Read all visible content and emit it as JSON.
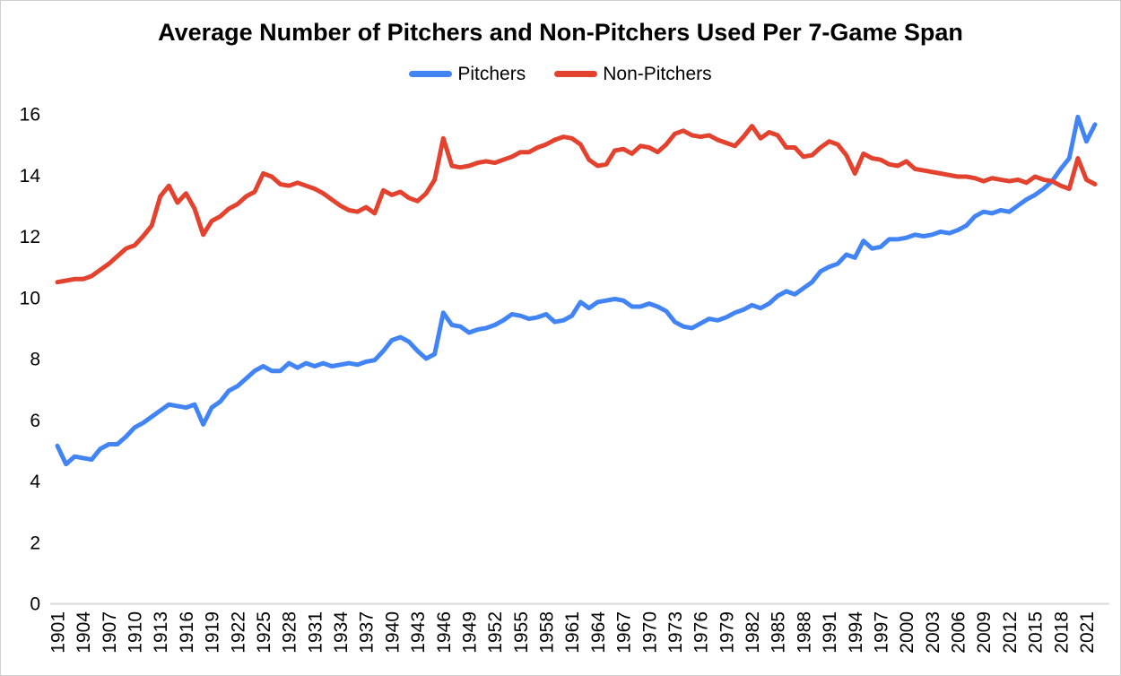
{
  "chart_data": {
    "type": "line",
    "title": "Average Number of Pitchers and Non-Pitchers Used Per 7-Game Span",
    "xlabel": "",
    "ylabel": "",
    "ylim": [
      0,
      16
    ],
    "yticks": [
      0,
      2,
      4,
      6,
      8,
      10,
      12,
      14,
      16
    ],
    "xticks": {
      "start": 1901,
      "end": 2021,
      "step": 3
    },
    "x_label_rotation": -90,
    "grid": false,
    "legend_position": "top-center",
    "x": [
      1901,
      1902,
      1903,
      1904,
      1905,
      1906,
      1907,
      1908,
      1909,
      1910,
      1911,
      1912,
      1913,
      1914,
      1915,
      1916,
      1917,
      1918,
      1919,
      1920,
      1921,
      1922,
      1923,
      1924,
      1925,
      1926,
      1927,
      1928,
      1929,
      1930,
      1931,
      1932,
      1933,
      1934,
      1935,
      1936,
      1937,
      1938,
      1939,
      1940,
      1941,
      1942,
      1943,
      1944,
      1945,
      1946,
      1947,
      1948,
      1949,
      1950,
      1951,
      1952,
      1953,
      1954,
      1955,
      1956,
      1957,
      1958,
      1959,
      1960,
      1961,
      1962,
      1963,
      1964,
      1965,
      1966,
      1967,
      1968,
      1969,
      1970,
      1971,
      1972,
      1973,
      1974,
      1975,
      1976,
      1977,
      1978,
      1979,
      1980,
      1981,
      1982,
      1983,
      1984,
      1985,
      1986,
      1987,
      1988,
      1989,
      1990,
      1991,
      1992,
      1993,
      1994,
      1995,
      1996,
      1997,
      1998,
      1999,
      2000,
      2001,
      2002,
      2003,
      2004,
      2005,
      2006,
      2007,
      2008,
      2009,
      2010,
      2011,
      2012,
      2013,
      2014,
      2015,
      2016,
      2017,
      2018,
      2019,
      2020,
      2021,
      2022
    ],
    "series": [
      {
        "name": "Pitchers",
        "color": "#4284f4",
        "values": [
          5.15,
          4.55,
          4.8,
          4.75,
          4.7,
          5.05,
          5.2,
          5.2,
          5.45,
          5.75,
          5.9,
          6.1,
          6.3,
          6.5,
          6.45,
          6.4,
          6.5,
          5.85,
          6.4,
          6.6,
          6.95,
          7.1,
          7.35,
          7.6,
          7.75,
          7.6,
          7.6,
          7.85,
          7.7,
          7.85,
          7.75,
          7.85,
          7.75,
          7.8,
          7.85,
          7.8,
          7.9,
          7.95,
          8.25,
          8.6,
          8.7,
          8.55,
          8.25,
          8.0,
          8.15,
          9.5,
          9.1,
          9.05,
          8.85,
          8.95,
          9.0,
          9.1,
          9.25,
          9.45,
          9.4,
          9.3,
          9.35,
          9.45,
          9.2,
          9.25,
          9.4,
          9.85,
          9.65,
          9.85,
          9.9,
          9.95,
          9.9,
          9.7,
          9.7,
          9.8,
          9.7,
          9.55,
          9.2,
          9.05,
          9.0,
          9.15,
          9.3,
          9.25,
          9.35,
          9.5,
          9.6,
          9.75,
          9.65,
          9.8,
          10.05,
          10.2,
          10.1,
          10.3,
          10.5,
          10.85,
          11.0,
          11.1,
          11.4,
          11.3,
          11.85,
          11.6,
          11.65,
          11.9,
          11.9,
          11.95,
          12.05,
          12.0,
          12.05,
          12.15,
          12.1,
          12.2,
          12.35,
          12.65,
          12.8,
          12.75,
          12.85,
          12.8,
          13.0,
          13.2,
          13.35,
          13.55,
          13.8,
          14.2,
          14.55,
          15.9,
          15.1,
          15.65
        ]
      },
      {
        "name": "Non-Pitchers",
        "color": "#e2422e",
        "values": [
          10.5,
          10.55,
          10.6,
          10.6,
          10.7,
          10.9,
          11.1,
          11.35,
          11.6,
          11.7,
          12.0,
          12.35,
          13.3,
          13.65,
          13.1,
          13.4,
          12.9,
          12.05,
          12.5,
          12.65,
          12.9,
          13.05,
          13.3,
          13.45,
          14.05,
          13.95,
          13.7,
          13.65,
          13.75,
          13.65,
          13.55,
          13.4,
          13.2,
          13.0,
          12.85,
          12.8,
          12.95,
          12.75,
          13.5,
          13.35,
          13.45,
          13.25,
          13.15,
          13.4,
          13.85,
          15.2,
          14.3,
          14.25,
          14.3,
          14.4,
          14.45,
          14.4,
          14.5,
          14.6,
          14.75,
          14.75,
          14.9,
          15.0,
          15.15,
          15.25,
          15.2,
          15.0,
          14.5,
          14.3,
          14.35,
          14.8,
          14.85,
          14.7,
          14.95,
          14.9,
          14.75,
          15.0,
          15.35,
          15.45,
          15.3,
          15.25,
          15.3,
          15.15,
          15.05,
          14.95,
          15.25,
          15.6,
          15.2,
          15.4,
          15.3,
          14.9,
          14.9,
          14.6,
          14.65,
          14.9,
          15.1,
          15.0,
          14.65,
          14.05,
          14.7,
          14.55,
          14.5,
          14.35,
          14.3,
          14.45,
          14.2,
          14.15,
          14.1,
          14.05,
          14.0,
          13.95,
          13.95,
          13.9,
          13.8,
          13.9,
          13.85,
          13.8,
          13.85,
          13.75,
          13.95,
          13.85,
          13.8,
          13.65,
          13.55,
          14.55,
          13.85,
          13.7
        ]
      }
    ],
    "axis_color": "#d9d9d9",
    "tick_label_color": "#000000"
  }
}
